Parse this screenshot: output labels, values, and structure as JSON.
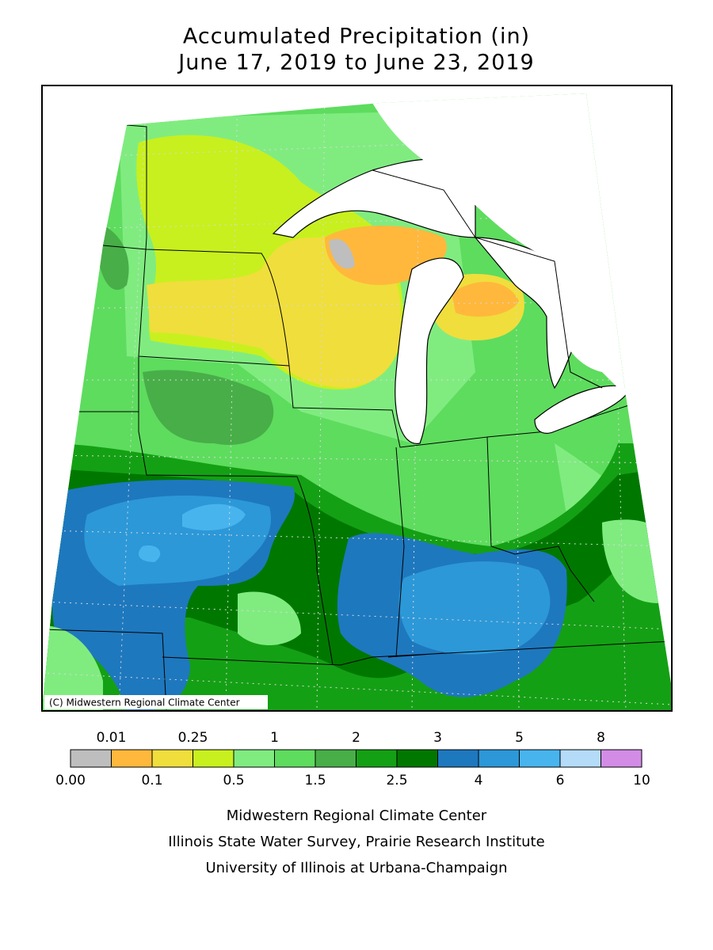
{
  "header": {
    "title": "Accumulated Precipitation (in)",
    "subtitle": "June 17, 2019 to June 23, 2019"
  },
  "map": {
    "credit": "(C) Midwestern Regional Climate Center"
  },
  "legend": {
    "boundaries": [
      {
        "value": 0,
        "label": "0.00"
      },
      0.01,
      0.1,
      0.25,
      0.5,
      1,
      1.5,
      2,
      2.5,
      3,
      4,
      5,
      6,
      8,
      10
    ],
    "colors": [
      "#bebebe",
      "#ffb83c",
      "#f0de3c",
      "#c8f01e",
      "#80ec80",
      "#5edc5e",
      "#48ae48",
      "#14a014",
      "#007800",
      "#1e78be",
      "#2c98d8",
      "#48b4ee",
      "#b4dcf8",
      "#d28ce6"
    ]
  },
  "footer": {
    "lines": [
      "Midwestern Regional Climate Center",
      "Illinois State Water Survey, Prairie Research Institute",
      "University of Illinois at Urbana-Champaign"
    ]
  }
}
